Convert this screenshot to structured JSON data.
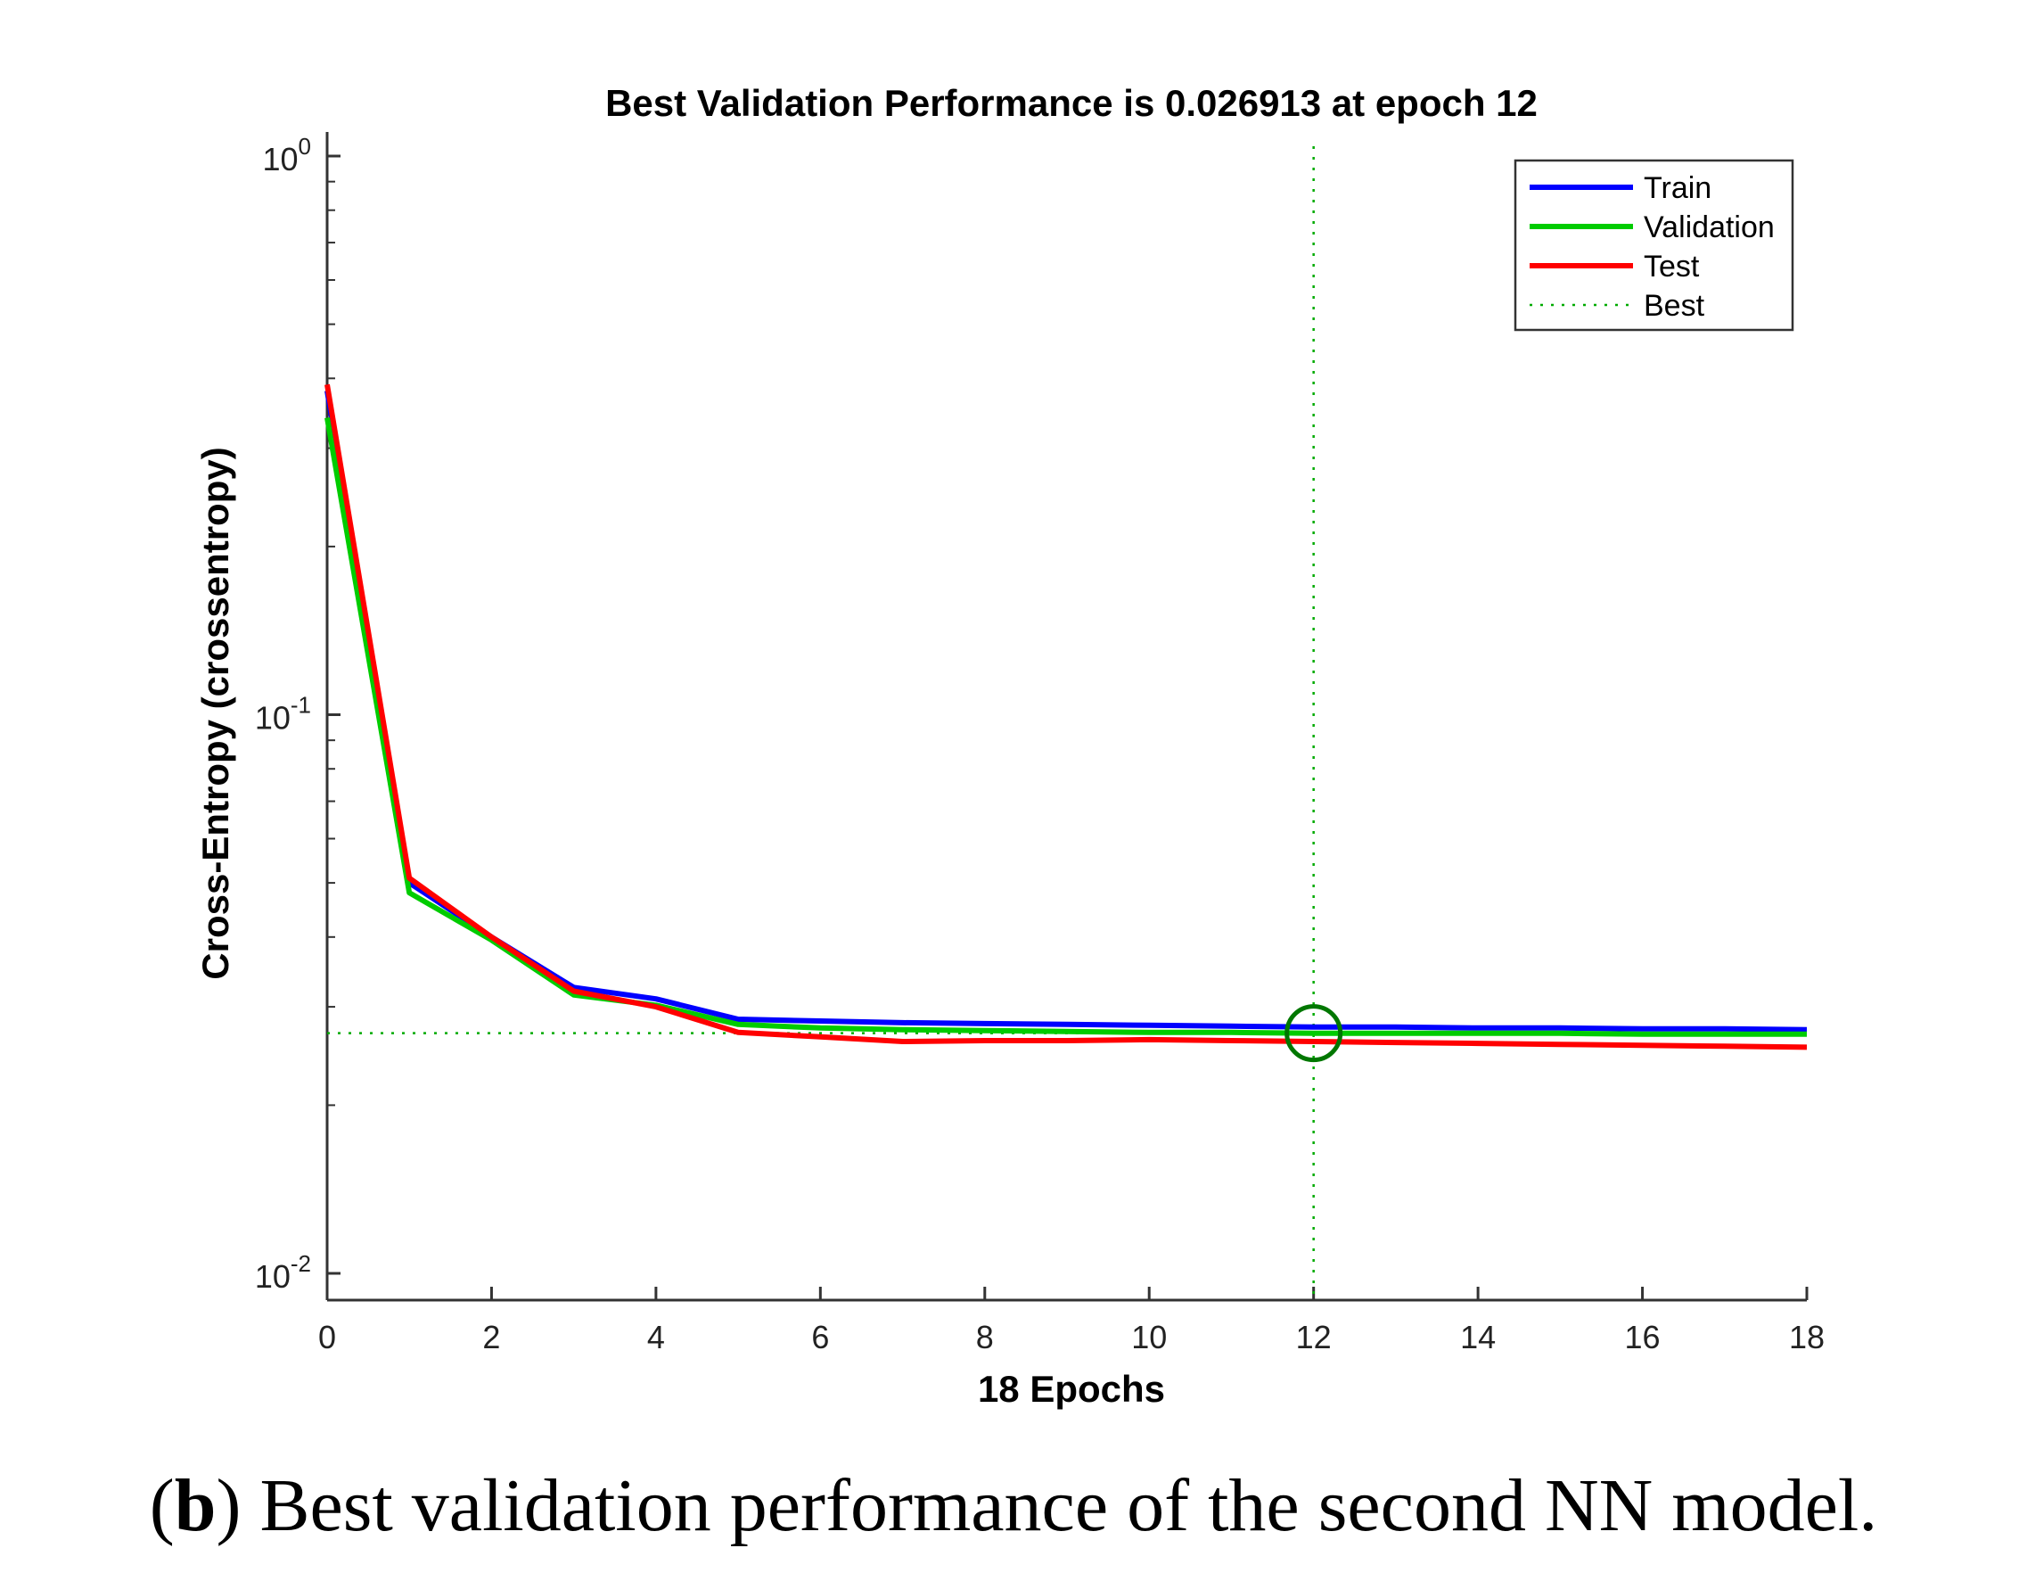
{
  "chart_data": {
    "type": "line",
    "title": "Best Validation Performance is 0.026913 at epoch 12",
    "xlabel": "18 Epochs",
    "ylabel": "Cross-Entropy  (crossentropy)",
    "yscale": "log",
    "xlim": [
      0,
      18
    ],
    "ylim": [
      0.01,
      1
    ],
    "xticks": [
      0,
      2,
      4,
      6,
      8,
      10,
      12,
      14,
      16,
      18
    ],
    "xtick_labels": [
      "0",
      "2",
      "4",
      "6",
      "8",
      "10",
      "12",
      "14",
      "16",
      "18"
    ],
    "yticks": [
      {
        "value": 1,
        "base": "10",
        "exp": "0"
      },
      {
        "value": 0.1,
        "base": "10",
        "exp": "-1"
      },
      {
        "value": 0.01,
        "base": "10",
        "exp": "-2"
      }
    ],
    "x": [
      0,
      1,
      2,
      3,
      4,
      5,
      6,
      7,
      8,
      9,
      10,
      11,
      12,
      13,
      14,
      15,
      16,
      17,
      18
    ],
    "series": [
      {
        "name": "Train",
        "color": "#0000ff",
        "values": [
          0.38,
          0.05,
          0.04,
          0.0325,
          0.031,
          0.0285,
          0.0283,
          0.0281,
          0.028,
          0.0279,
          0.0278,
          0.0277,
          0.0276,
          0.0276,
          0.0275,
          0.0275,
          0.0274,
          0.0274,
          0.0273
        ]
      },
      {
        "name": "Validation",
        "color": "#00cc00",
        "values": [
          0.34,
          0.048,
          0.0395,
          0.0315,
          0.0302,
          0.0279,
          0.0275,
          0.0273,
          0.0272,
          0.0271,
          0.027,
          0.027,
          0.02691,
          0.0269,
          0.0269,
          0.0269,
          0.0268,
          0.0268,
          0.0268
        ]
      },
      {
        "name": "Test",
        "color": "#ff0000",
        "values": [
          0.39,
          0.051,
          0.04,
          0.032,
          0.03,
          0.027,
          0.0265,
          0.026,
          0.0261,
          0.0261,
          0.0262,
          0.0261,
          0.026,
          0.0259,
          0.0258,
          0.0257,
          0.0256,
          0.0255,
          0.0254
        ]
      }
    ],
    "best": {
      "name": "Best",
      "epoch": 12,
      "value": 0.026913,
      "color": "#00aa00",
      "marker_color": "#007700"
    },
    "legend": [
      "Train",
      "Validation",
      "Test",
      "Best"
    ],
    "legend_position": "top-right"
  },
  "caption": {
    "label": "b",
    "text": "Best validation performance of the second NN model."
  }
}
